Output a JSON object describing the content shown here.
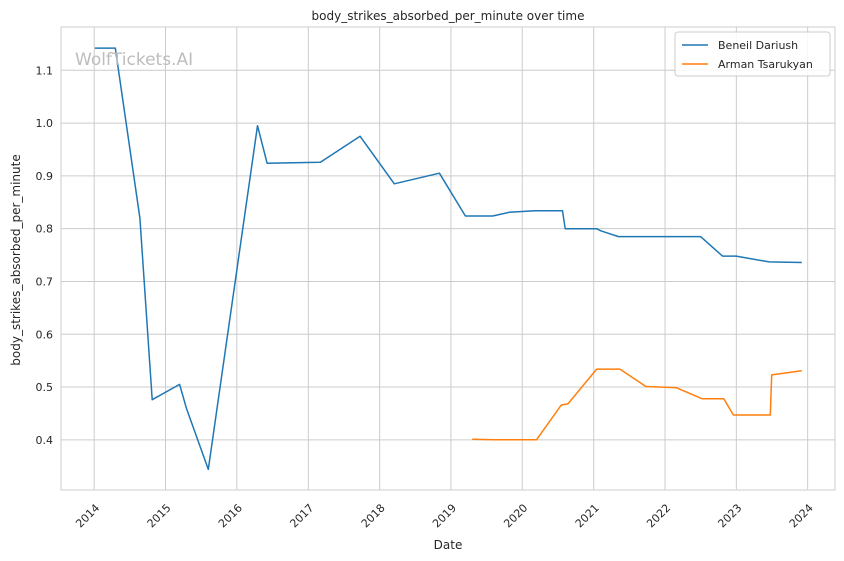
{
  "chart_data": {
    "type": "line",
    "title": "body_strikes_absorbed_per_minute over time",
    "xlabel": "Date",
    "ylabel": "body_strikes_absorbed_per_minute",
    "watermark": "WolfTickets.AI",
    "x_type": "date",
    "xlim": [
      "2013-07-15",
      "2024-05-20"
    ],
    "ylim": [
      0.305,
      1.182
    ],
    "x_ticks": [
      "2014-01-01",
      "2015-01-01",
      "2016-01-01",
      "2017-01-01",
      "2018-01-01",
      "2019-01-01",
      "2020-01-01",
      "2021-01-01",
      "2022-01-01",
      "2023-01-01",
      "2024-01-01"
    ],
    "x_tick_labels": [
      "2014",
      "2015",
      "2016",
      "2017",
      "2018",
      "2019",
      "2020",
      "2021",
      "2022",
      "2023",
      "2024"
    ],
    "y_ticks": [
      0.4,
      0.5,
      0.6,
      0.7,
      0.8,
      0.9,
      1.0,
      1.1
    ],
    "y_tick_labels": [
      "0.4",
      "0.5",
      "0.6",
      "0.7",
      "0.8",
      "0.9",
      "1.0",
      "1.1"
    ],
    "grid": true,
    "legend_position": "top-right",
    "series": [
      {
        "name": "Beneil Dariush",
        "color": "#1f77b4",
        "points": [
          [
            "2014-01-04",
            1.142
          ],
          [
            "2014-04-19",
            1.142
          ],
          [
            "2014-08-23",
            0.82
          ],
          [
            "2014-10-25",
            0.476
          ],
          [
            "2015-03-14",
            0.505
          ],
          [
            "2015-04-18",
            0.46
          ],
          [
            "2015-08-08",
            0.344
          ],
          [
            "2016-04-16",
            0.995
          ],
          [
            "2016-06-04",
            0.924
          ],
          [
            "2017-03-04",
            0.926
          ],
          [
            "2017-09-23",
            0.975
          ],
          [
            "2018-03-17",
            0.885
          ],
          [
            "2018-11-03",
            0.905
          ],
          [
            "2019-03-16",
            0.824
          ],
          [
            "2019-08-03",
            0.824
          ],
          [
            "2019-10-26",
            0.831
          ],
          [
            "2020-03-07",
            0.834
          ],
          [
            "2020-07-25",
            0.834
          ],
          [
            "2020-08-08",
            0.8
          ],
          [
            "2021-01-16",
            0.8
          ],
          [
            "2021-02-06",
            0.796
          ],
          [
            "2021-05-08",
            0.785
          ],
          [
            "2022-07-02",
            0.785
          ],
          [
            "2022-10-22",
            0.748
          ],
          [
            "2022-12-31",
            0.748
          ],
          [
            "2023-06-17",
            0.737
          ],
          [
            "2023-12-02",
            0.736
          ]
        ]
      },
      {
        "name": "Arman Tsarukyan",
        "color": "#ff7f0e",
        "points": [
          [
            "2019-04-20",
            0.401
          ],
          [
            "2019-08-10",
            0.4
          ],
          [
            "2020-03-14",
            0.4
          ],
          [
            "2020-07-19",
            0.466
          ],
          [
            "2020-08-22",
            0.468
          ],
          [
            "2021-01-16",
            0.534
          ],
          [
            "2021-05-15",
            0.534
          ],
          [
            "2021-09-25",
            0.501
          ],
          [
            "2022-02-26",
            0.499
          ],
          [
            "2022-07-09",
            0.478
          ],
          [
            "2022-10-29",
            0.478
          ],
          [
            "2022-12-17",
            0.447
          ],
          [
            "2023-06-24",
            0.447
          ],
          [
            "2023-07-01",
            0.523
          ],
          [
            "2023-12-02",
            0.531
          ]
        ]
      }
    ]
  }
}
